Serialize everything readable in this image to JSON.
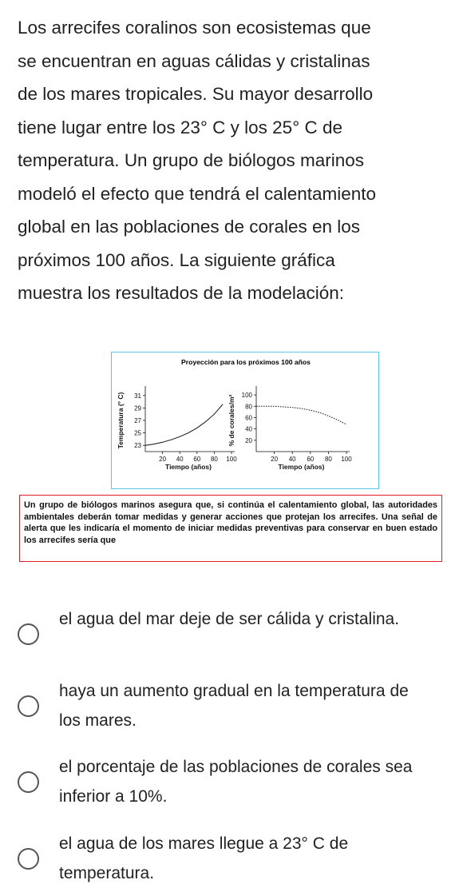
{
  "question": {
    "lines": [
      "Los arrecifes coralinos son ecosistemas que",
      "se encuentran en aguas cálidas y cristalinas",
      "de los mares tropicales. Su mayor desarrollo",
      "tiene lugar entre los 23° C y los 25° C de",
      "temperatura. Un grupo de biólogos marinos",
      "modeló el efecto que tendrá el calentamiento",
      "global en las poblaciones de corales en los",
      "próximos 100 años. La siguiente gráfica",
      "muestra los resultados de la modelación:"
    ]
  },
  "figure": {
    "title": "Proyección para los próximos 100 años",
    "note": "Un grupo de biólogos marinos asegura que, si continúa el calentamiento global, las autoridades ambientales deberán tomar medidas y generar acciones que protejan los arrecifes. Una señal de alerta que les indicaría el momento de iniciar medidas preventivas para conservar en buen estado los arrecifes sería que"
  },
  "chart_data": [
    {
      "type": "line",
      "title": "Proyección para los próximos 100 años",
      "xlabel": "Tiempo (años)",
      "ylabel": "Temperatura (° C)",
      "xticks": [
        "20",
        "40",
        "60",
        "80",
        "100"
      ],
      "yticks": [
        "23",
        "25",
        "27",
        "29",
        "31"
      ],
      "xlim": [
        0,
        100
      ],
      "ylim": [
        22,
        32
      ],
      "series": [
        {
          "x": [
            0,
            10,
            20,
            30,
            40,
            50,
            60,
            70,
            80,
            90
          ],
          "y": [
            23.0,
            23.2,
            23.5,
            23.9,
            24.4,
            25.0,
            25.8,
            26.8,
            28.0,
            29.6
          ],
          "style": "solid"
        }
      ],
      "grid": false
    },
    {
      "type": "line",
      "xlabel": "Tiempo (años)",
      "ylabel": "% de corales/m²",
      "xticks": [
        "20",
        "40",
        "60",
        "80",
        "100"
      ],
      "yticks": [
        "20",
        "40",
        "60",
        "80",
        "100"
      ],
      "xlim": [
        0,
        100
      ],
      "ylim": [
        0,
        110
      ],
      "series": [
        {
          "x": [
            0,
            10,
            20,
            30,
            40,
            50,
            60,
            70,
            80,
            90,
            100
          ],
          "y": [
            80,
            80,
            80,
            79,
            78,
            76,
            73,
            69,
            63,
            56,
            48
          ],
          "style": "dashed"
        }
      ],
      "grid": false
    }
  ],
  "options": [
    {
      "text": "el agua del mar deje de ser cálida y cristalina."
    },
    {
      "text": "haya un aumento gradual en la temperatura de los mares."
    },
    {
      "text": "el porcentaje de las poblaciones de corales sea inferior a 10%."
    },
    {
      "text": "el agua de los mares llegue a 23° C de temperatura."
    }
  ]
}
